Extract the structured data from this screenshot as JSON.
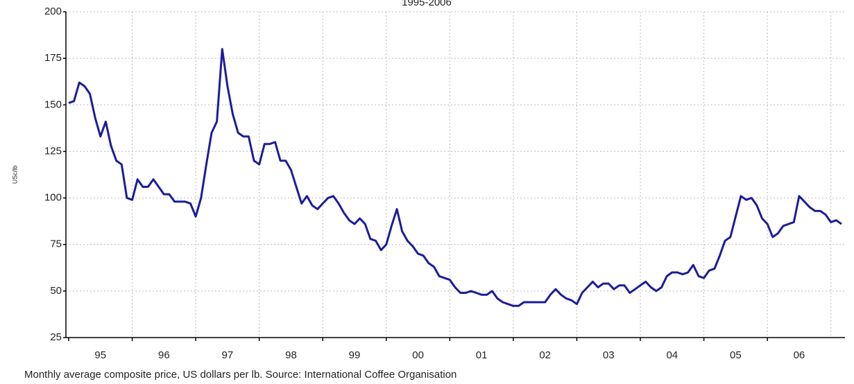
{
  "chart_data": {
    "type": "line",
    "title": "1995-2006",
    "y_label": "USc/lb",
    "footnote": "Monthly average composite price, US dollars per lb. Source: International Coffee Organisation",
    "categories": [
      null,
      null,
      null,
      null,
      null,
      null,
      "95",
      null,
      null,
      null,
      null,
      null,
      null,
      null,
      null,
      null,
      null,
      null,
      "96",
      null,
      null,
      null,
      null,
      null,
      null,
      null,
      null,
      null,
      null,
      null,
      "97",
      null,
      null,
      null,
      null,
      null,
      null,
      null,
      null,
      null,
      null,
      null,
      "98",
      null,
      null,
      null,
      null,
      null,
      null,
      null,
      null,
      null,
      null,
      null,
      "99",
      null,
      null,
      null,
      null,
      null,
      null,
      null,
      null,
      null,
      null,
      null,
      "00",
      null,
      null,
      null,
      null,
      null,
      null,
      null,
      null,
      null,
      null,
      null,
      "01",
      null,
      null,
      null,
      null,
      null,
      null,
      null,
      null,
      null,
      null,
      null,
      "02",
      null,
      null,
      null,
      null,
      null,
      null,
      null,
      null,
      null,
      null,
      null,
      "03",
      null,
      null,
      null,
      null,
      null,
      null,
      null,
      null,
      null,
      null,
      null,
      "04",
      null,
      null,
      null,
      null,
      null,
      null,
      null,
      null,
      null,
      null,
      null,
      "05",
      null,
      null,
      null,
      null,
      null,
      null,
      null,
      null,
      null,
      null,
      null,
      "06",
      null,
      null,
      null,
      null,
      null,
      null,
      null,
      null
    ],
    "series": [
      {
        "name": "Composite price",
        "color": "#1c1c99",
        "values": [
          151,
          152,
          162,
          160,
          156,
          143,
          133,
          141,
          128,
          120,
          118,
          100,
          99,
          110,
          106,
          106,
          110,
          106,
          102,
          102,
          98,
          98,
          98,
          97,
          90,
          100,
          118,
          135,
          141,
          180,
          160,
          145,
          135,
          133,
          133,
          120,
          118,
          129,
          129,
          130,
          120,
          120,
          115,
          106,
          97,
          101,
          96,
          94,
          97,
          100,
          101,
          97,
          92,
          88,
          86,
          89,
          86,
          78,
          77,
          72,
          75,
          85,
          94,
          82,
          77,
          74,
          70,
          69,
          65,
          63,
          58,
          57,
          56,
          52,
          49,
          49,
          50,
          49,
          48,
          48,
          50,
          46,
          44,
          43,
          42,
          42,
          44,
          44,
          44,
          44,
          44,
          48,
          51,
          48,
          46,
          45,
          43,
          49,
          52,
          55,
          52,
          54,
          54,
          51,
          53,
          53,
          49,
          51,
          53,
          55,
          52,
          50,
          52,
          58,
          60,
          60,
          59,
          60,
          64,
          58,
          57,
          61,
          62,
          69,
          77,
          79,
          90,
          101,
          99,
          100,
          96,
          89,
          86,
          79,
          81,
          85,
          86,
          87,
          101,
          98,
          95,
          93,
          93,
          91,
          87,
          88,
          86
        ]
      }
    ],
    "ylim": [
      25,
      200
    ],
    "yticks": [
      25,
      50,
      75,
      100,
      125,
      150,
      175,
      200
    ],
    "grid": true
  }
}
